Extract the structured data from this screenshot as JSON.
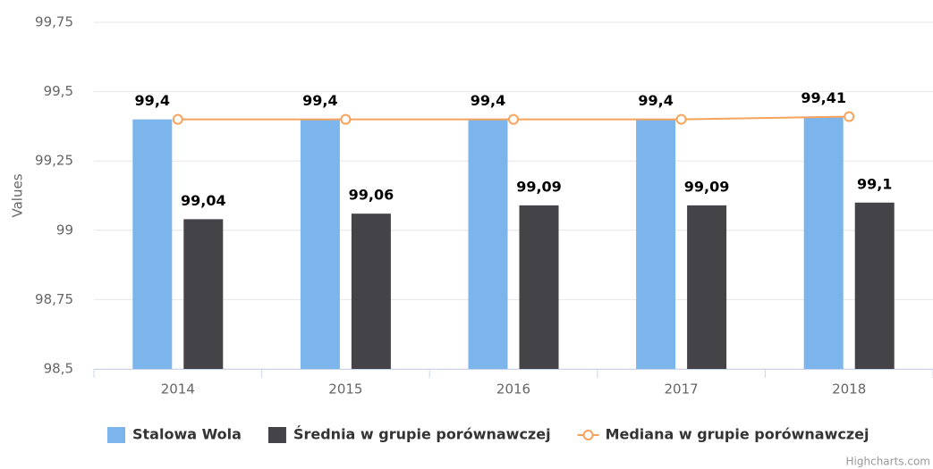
{
  "chart_data": {
    "type": "combo",
    "y_axis_label": "Values",
    "credits": "Highcharts.com",
    "categories": [
      "2014",
      "2015",
      "2016",
      "2017",
      "2018"
    ],
    "series": [
      {
        "name": "Stalowa Wola",
        "type": "column",
        "color": "#7cb5ec",
        "values": [
          99.4,
          99.4,
          99.4,
          99.4,
          99.41
        ],
        "value_labels": [
          "99,4",
          "99,4",
          "99,4",
          "99,4",
          "99,41"
        ]
      },
      {
        "name": "Średnia w grupie porównawczej",
        "type": "column",
        "color": "#434348",
        "values": [
          99.04,
          99.06,
          99.09,
          99.09,
          99.1
        ],
        "value_labels": [
          "99,04",
          "99,06",
          "99,09",
          "99,09",
          "99,1"
        ]
      },
      {
        "name": "Mediana w grupie porównawczej",
        "type": "line",
        "color": "#f7a35c",
        "values": [
          99.4,
          99.4,
          99.4,
          99.4,
          99.41
        ]
      }
    ],
    "ylim": [
      98.5,
      99.75
    ],
    "yticks": [
      {
        "value": 98.5,
        "label": "98,5"
      },
      {
        "value": 98.75,
        "label": "98,75"
      },
      99,
      {
        "value": 99.25,
        "label": "99,25"
      },
      {
        "value": 99.5,
        "label": "99,5"
      },
      {
        "value": 99.75,
        "label": "99,75"
      }
    ],
    "grid": true,
    "legend": "bottom"
  }
}
